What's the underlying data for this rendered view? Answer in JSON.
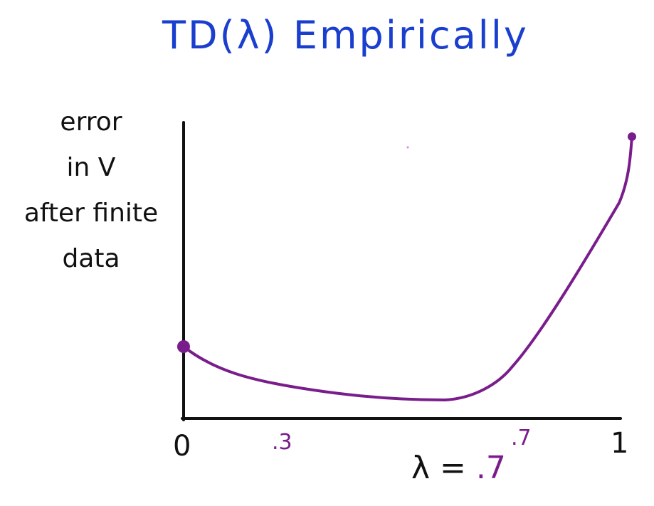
{
  "title": "TD(λ) Empirically",
  "y_axis": {
    "label_lines": [
      "error",
      "in V",
      "after finite",
      "data"
    ]
  },
  "x_axis": {
    "tick_0": "0",
    "tick_1": "1",
    "mark_03": ".3",
    "mark_07": ".7"
  },
  "annotation": {
    "lambda_symbol": "λ =",
    "lambda_value": ".7"
  },
  "colors": {
    "title": "#1a3fcf",
    "curve": "#7a1d8c",
    "axes": "#111111"
  }
}
